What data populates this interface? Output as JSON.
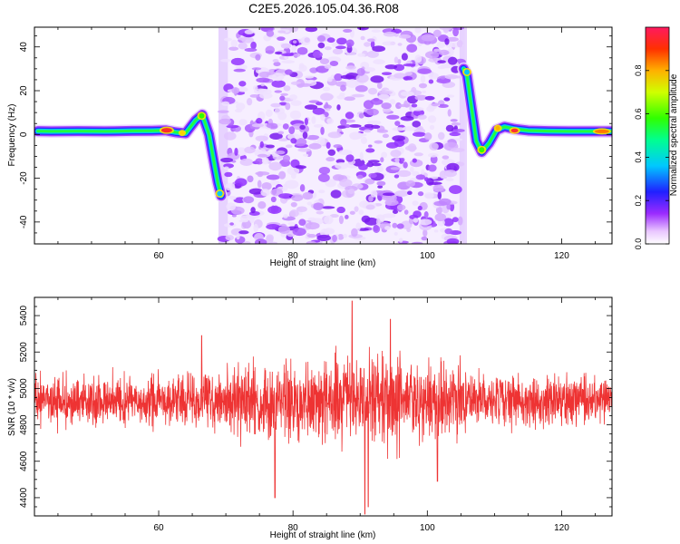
{
  "title": "C2E5.2026.105.04.36.R08",
  "chart_data": [
    {
      "type": "heatmap",
      "name": "spectrogram",
      "xlabel": "Height of straight line (km)",
      "ylabel": "Frequency (Hz)",
      "xlim": [
        41.5,
        127.5
      ],
      "ylim": [
        -50,
        49
      ],
      "xticks": [
        "60",
        "80",
        "100",
        "120"
      ],
      "yticks": [
        "40",
        "20",
        "0",
        "-20",
        "-40"
      ],
      "colorbar": {
        "label": "Normalized spectral amplitude",
        "range": [
          0,
          1
        ],
        "ticks": [
          "0.0",
          "0.2",
          "0.4",
          "0.6",
          "0.8"
        ]
      },
      "ridge_segments": [
        {
          "x": [
            42,
            44,
            48,
            52,
            56,
            59,
            61,
            62.5,
            64,
            65.5,
            66.5,
            67.5,
            68.2,
            68.8,
            69.3
          ],
          "y": [
            1.5,
            1.4,
            1.5,
            1.4,
            1.6,
            1.7,
            1.9,
            1.0,
            0.5,
            6.5,
            9,
            0,
            -12,
            -22,
            -28
          ]
        },
        {
          "x": [
            105.4,
            105.9,
            106.6,
            107.3,
            108.1,
            109.2,
            110.3,
            111.5,
            113,
            115,
            118,
            121,
            124,
            127.5
          ],
          "y": [
            30,
            27,
            12,
            -3,
            -8,
            -4,
            2,
            3.5,
            2.5,
            1.8,
            1.5,
            1.4,
            1.4,
            1.4
          ]
        }
      ],
      "noise_region_km": [
        69.5,
        105.0
      ]
    },
    {
      "type": "line",
      "name": "snr",
      "xlabel": "Height of straight line (km)",
      "ylabel": "SNR (10 * v/v)",
      "xlim": [
        41.5,
        127.5
      ],
      "ylim": [
        4300,
        5500
      ],
      "xticks": [
        "60",
        "80",
        "100",
        "120"
      ],
      "yticks": [
        "5400",
        "5200",
        "5000",
        "4800",
        "4600",
        "4400"
      ],
      "color": "#ee3333",
      "baseline": 4930,
      "spikes": [
        {
          "x": 77.3,
          "y": 4400
        },
        {
          "x": 88.8,
          "y": 5480
        },
        {
          "x": 90.7,
          "y": 4310
        },
        {
          "x": 91.2,
          "y": 4350
        },
        {
          "x": 94.5,
          "y": 5380
        },
        {
          "x": 101.5,
          "y": 4490
        },
        {
          "x": 66.4,
          "y": 5290
        }
      ]
    }
  ]
}
